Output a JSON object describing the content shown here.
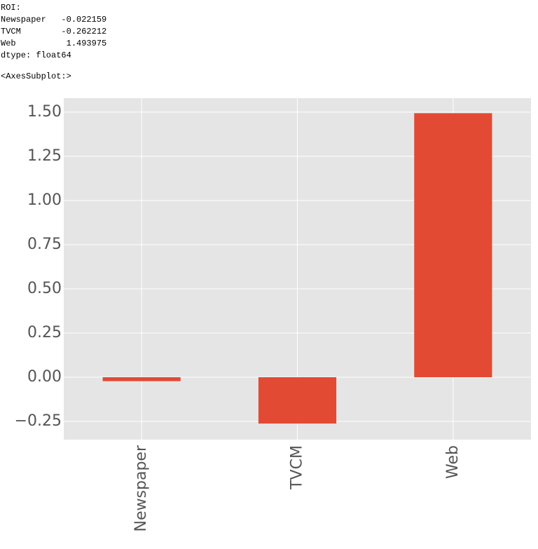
{
  "console_output": {
    "lines": [
      "ROI:",
      "Newspaper   -0.022159",
      "TVCM        -0.262212",
      "Web          1.493975",
      "dtype: float64",
      "<AxesSubplot:>"
    ]
  },
  "chart_data": {
    "type": "bar",
    "categories": [
      "Newspaper",
      "TVCM",
      "Web"
    ],
    "values": [
      -0.022159,
      -0.262212,
      1.493975
    ],
    "color": "#e24a33",
    "ylim": [
      -0.353,
      1.579
    ],
    "yticks": [
      {
        "value": -0.25,
        "label": "−0.25"
      },
      {
        "value": 0,
        "label": "0.00"
      },
      {
        "value": 0.25,
        "label": "0.25"
      },
      {
        "value": 0.5,
        "label": "0.50"
      },
      {
        "value": 0.75,
        "label": "0.75"
      },
      {
        "value": 1,
        "label": "1.00"
      },
      {
        "value": 1.25,
        "label": "1.25"
      },
      {
        "value": 1.5,
        "label": "1.50"
      }
    ],
    "grid": true
  }
}
